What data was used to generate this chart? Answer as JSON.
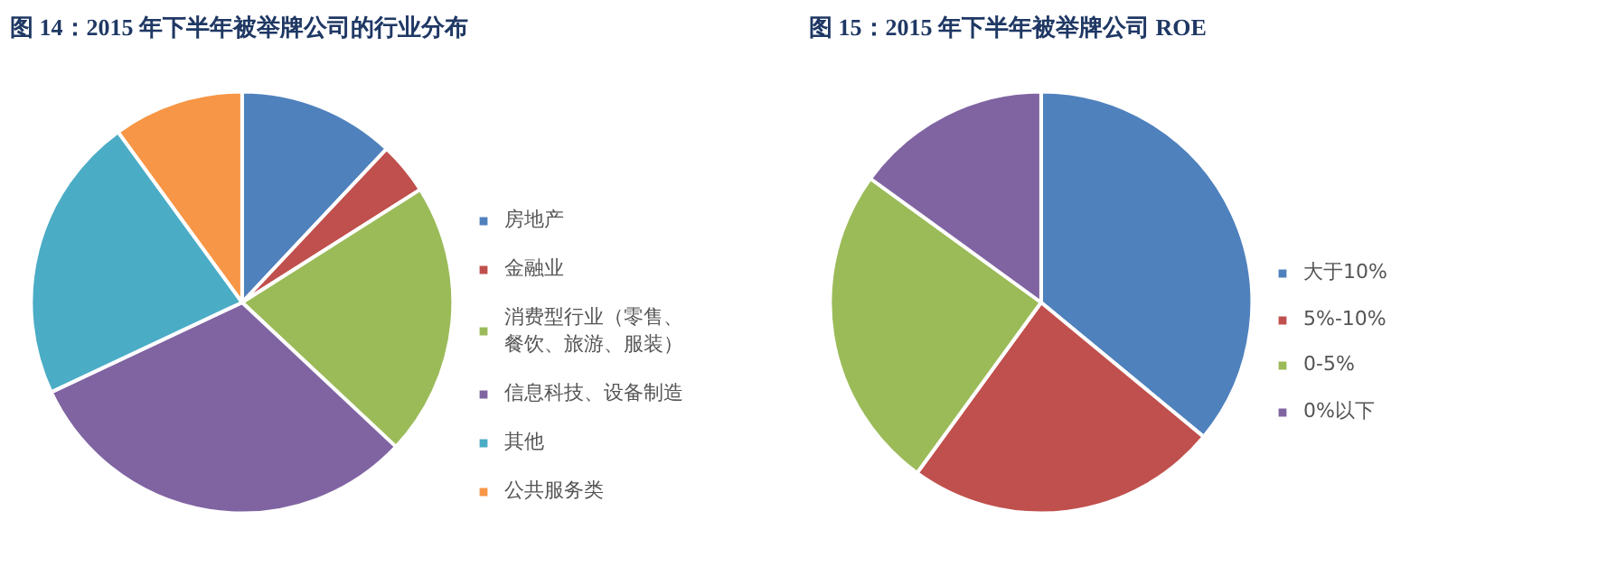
{
  "chart_data": [
    {
      "type": "pie",
      "title": "图 14：2015 年下半年被举牌公司的行业分布",
      "categories": [
        "房地产",
        "金融业",
        "消费型行业（零售、餐饮、旅游、服装）",
        "信息科技、设备制造",
        "其他",
        "公共服务类"
      ],
      "values": [
        12,
        4,
        21,
        31,
        22,
        10
      ],
      "colors": [
        "#4f81bd",
        "#c0504d",
        "#9bbb59",
        "#8064a2",
        "#4bacc6",
        "#f79646"
      ],
      "legend": "right"
    },
    {
      "type": "pie",
      "title": "图 15：2015 年下半年被举牌公司 ROE",
      "categories": [
        "大于10%",
        "5%-10%",
        "0-5%",
        "0%以下"
      ],
      "values": [
        36,
        24,
        25,
        15
      ],
      "colors": [
        "#4f81bd",
        "#c0504d",
        "#9bbb59",
        "#8064a2"
      ],
      "legend": "right"
    }
  ]
}
